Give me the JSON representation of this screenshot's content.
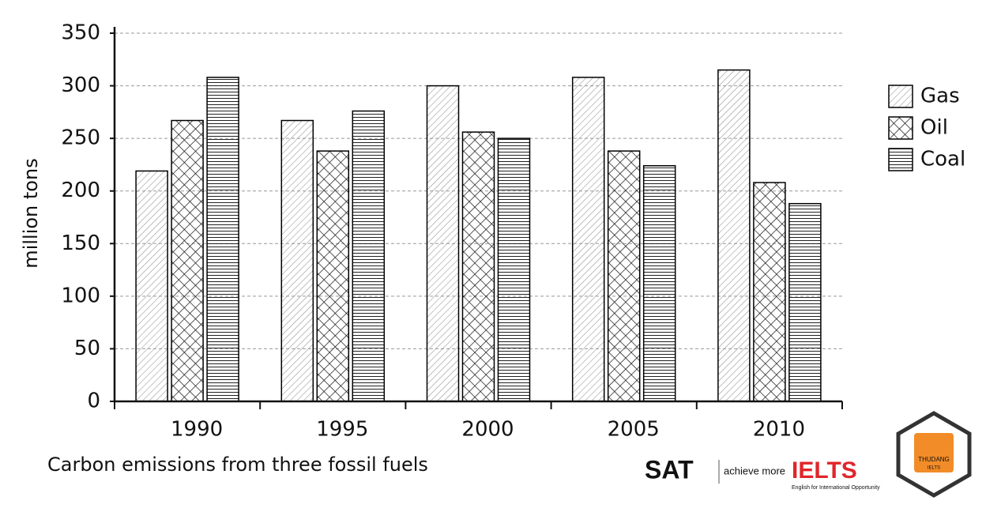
{
  "chart_data": {
    "type": "bar",
    "title": "Carbon emissions from three fossil fuels",
    "y_label": "million tons",
    "categories": [
      "1990",
      "1995",
      "2000",
      "2005",
      "2010"
    ],
    "series": [
      {
        "name": "Gas",
        "color": "#000000",
        "pattern": "diagonal",
        "values": [
          219,
          267,
          300,
          308,
          315
        ]
      },
      {
        "name": "Oil",
        "color": "#000000",
        "pattern": "crosshatch",
        "values": [
          267,
          238,
          256,
          238,
          208
        ]
      },
      {
        "name": "Coal",
        "color": "#000000",
        "pattern": "horizontal",
        "values": [
          308,
          276,
          250,
          224,
          188
        ]
      }
    ],
    "ylim": [
      0,
      350
    ],
    "yticks": [
      0,
      50,
      100,
      150,
      200,
      250,
      300,
      350
    ],
    "grid": true,
    "legend": "right"
  },
  "branding": {
    "sat": "SAT",
    "sat_tagline": "achieve more",
    "ielts": "IELTS",
    "ielts_tagline": "English for International Opportunity",
    "logo": "THUDANG",
    "logo_sub": "IELTS"
  }
}
